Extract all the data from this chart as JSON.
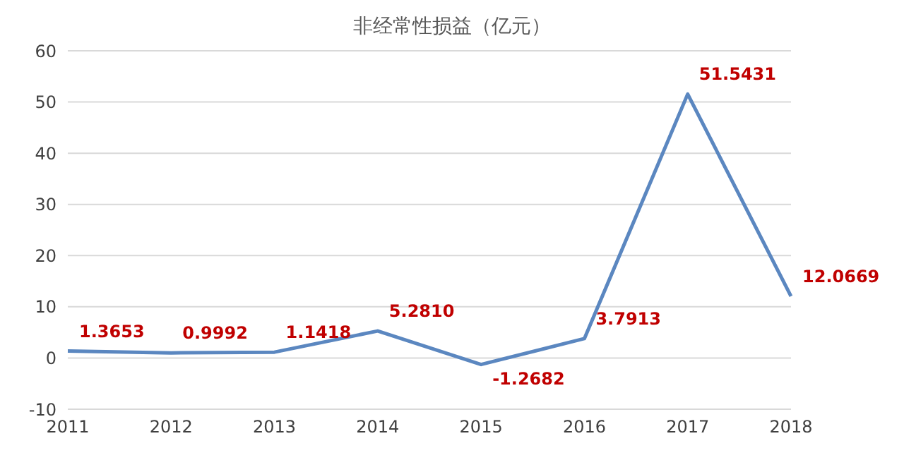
{
  "chart_data": {
    "type": "line",
    "title": "非经常性损益（亿元）",
    "categories": [
      "2011",
      "2012",
      "2013",
      "2014",
      "2015",
      "2016",
      "2017",
      "2018"
    ],
    "series": [
      {
        "color": "#5b87c0",
        "values": [
          1.3653,
          0.9992,
          1.1418,
          5.281,
          -1.2682,
          3.7913,
          51.5431,
          12.0669
        ],
        "value_labels": [
          "1.3653",
          "0.9992",
          "1.1418",
          "5.2810",
          "-1.2682",
          "3.7913",
          "51.5431",
          "12.0669"
        ]
      }
    ],
    "ylim": [
      -10,
      60
    ],
    "yticks": [
      -10,
      0,
      10,
      20,
      30,
      40,
      50,
      60
    ],
    "grid": "y",
    "marker": "none",
    "line_style": "solid"
  }
}
